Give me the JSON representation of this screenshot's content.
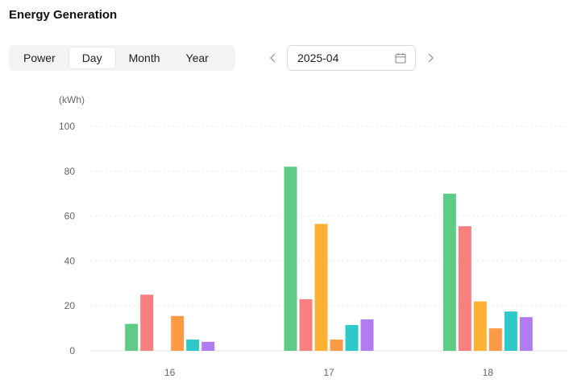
{
  "header": {
    "title": "Energy Generation"
  },
  "tabs": [
    {
      "label": "Power",
      "active": false
    },
    {
      "label": "Day",
      "active": true
    },
    {
      "label": "Month",
      "active": false
    },
    {
      "label": "Year",
      "active": false
    }
  ],
  "date_picker": {
    "value": "2025-04",
    "prev_icon": "chevron-left-icon",
    "next_icon": "chevron-right-icon",
    "calendar_icon": "calendar-icon"
  },
  "chart_data": {
    "type": "bar",
    "unit_label": "(kWh)",
    "categories": [
      "16",
      "17",
      "18"
    ],
    "ylim": [
      0,
      100
    ],
    "yticks": [
      0,
      20,
      40,
      60,
      80,
      100
    ],
    "grid": true,
    "series": [
      {
        "color": "#5ecb86",
        "values": [
          12,
          82,
          70
        ]
      },
      {
        "color": "#f77f7f",
        "values": [
          25,
          23,
          55.5
        ]
      },
      {
        "color": "#fdb032",
        "values": [
          0,
          56.5,
          22
        ]
      },
      {
        "color": "#fd9a45",
        "values": [
          15.5,
          5,
          10
        ]
      },
      {
        "color": "#2ec9c9",
        "values": [
          5,
          11.5,
          17.5
        ]
      },
      {
        "color": "#b07cf0",
        "values": [
          4,
          14,
          15
        ]
      }
    ]
  }
}
